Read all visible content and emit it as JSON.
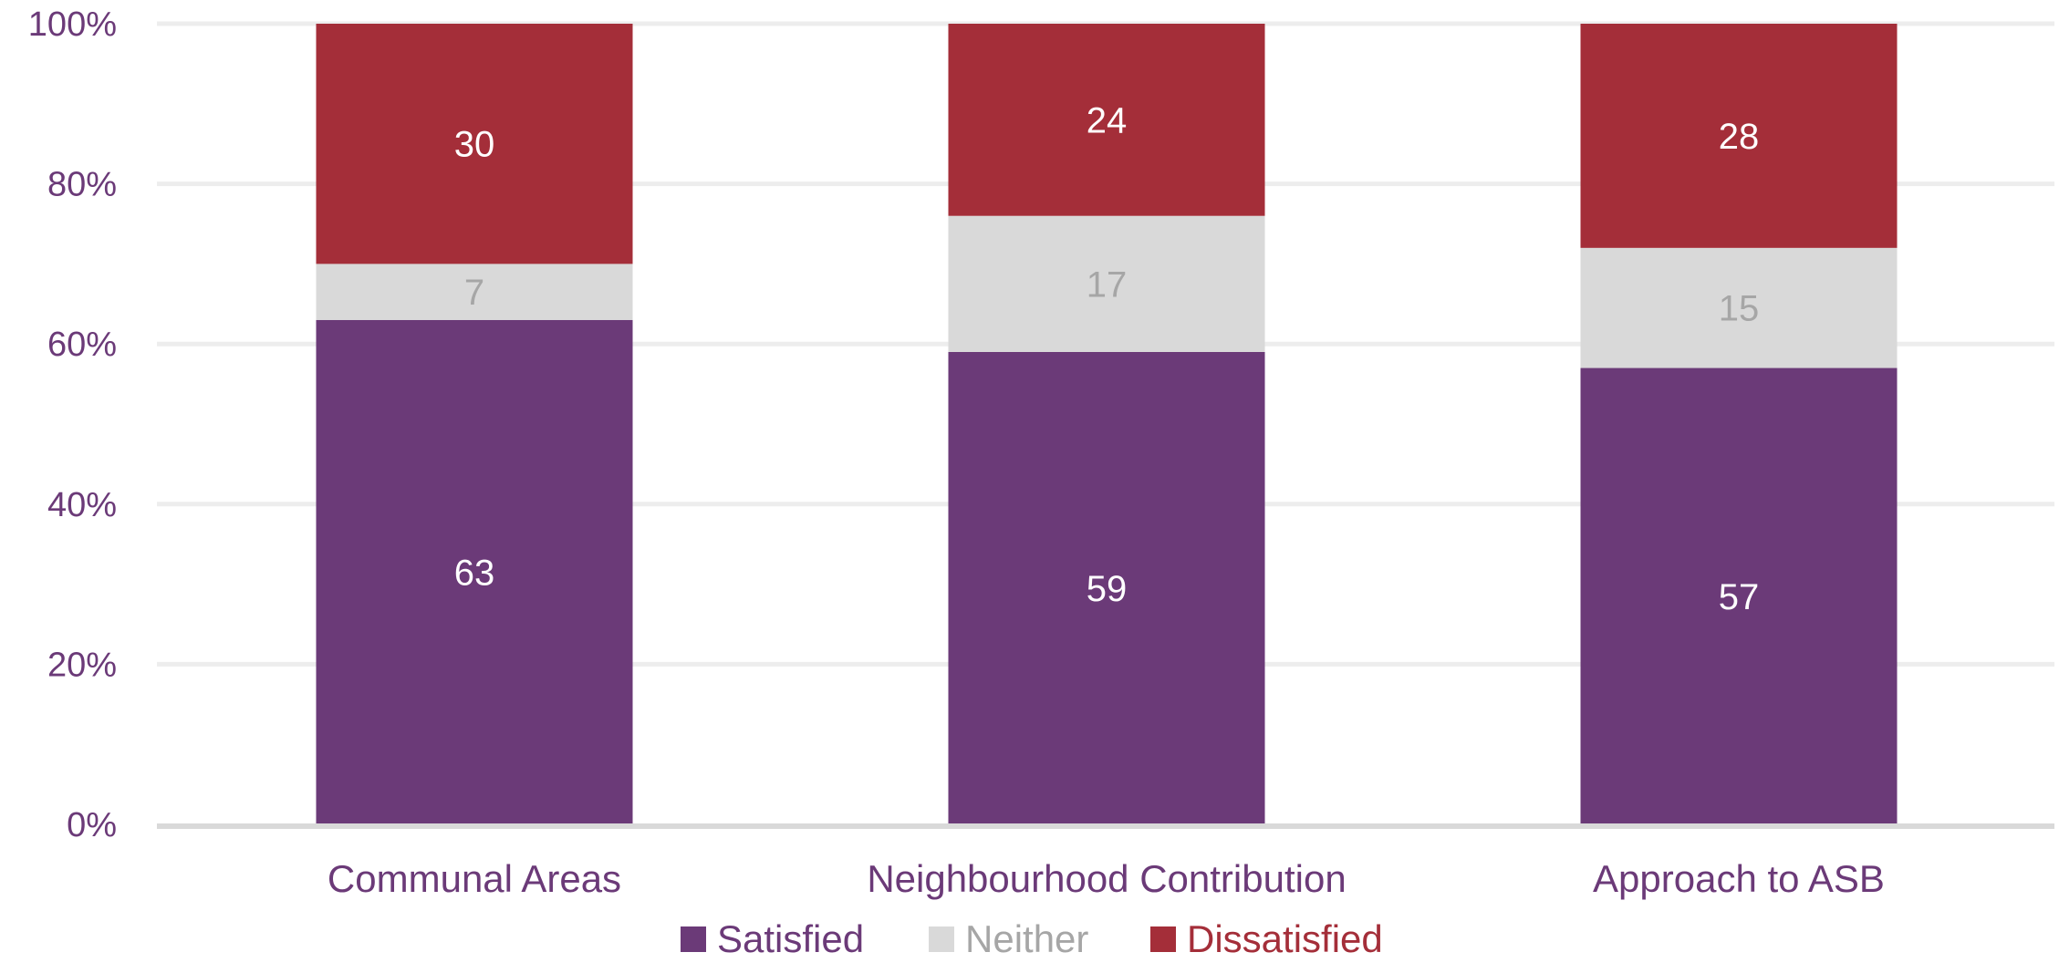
{
  "chart_data": {
    "type": "bar",
    "stacked": true,
    "percent_stacked": true,
    "categories": [
      "Communal Areas",
      "Neighbourhood Contribution",
      "Approach to ASB"
    ],
    "series": [
      {
        "name": "Satisfied",
        "values": [
          63,
          59,
          57
        ],
        "color": "#6B3A78",
        "label_color": "#FFFFFF"
      },
      {
        "name": "Neither",
        "values": [
          7,
          17,
          15
        ],
        "color": "#D9D9D9",
        "label_color": "#A6A6A6"
      },
      {
        "name": "Dissatisfied",
        "values": [
          30,
          24,
          28
        ],
        "color": "#A42E39",
        "label_color": "#FFFFFF"
      }
    ],
    "ylim": [
      0,
      100
    ],
    "yticks": [
      "0%",
      "20%",
      "40%",
      "60%",
      "80%",
      "100%"
    ],
    "ytick_values": [
      0,
      20,
      40,
      60,
      80,
      100
    ],
    "grid": true,
    "legend_position": "bottom",
    "axis_text_color": "#6B3A78",
    "gridline_color": "#EDEDED"
  }
}
